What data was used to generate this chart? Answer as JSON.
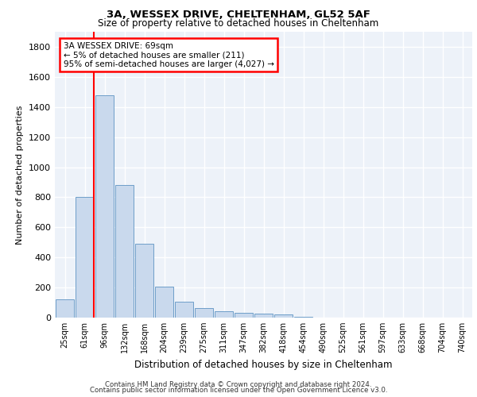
{
  "title_line1": "3A, WESSEX DRIVE, CHELTENHAM, GL52 5AF",
  "title_line2": "Size of property relative to detached houses in Cheltenham",
  "xlabel": "Distribution of detached houses by size in Cheltenham",
  "ylabel": "Number of detached properties",
  "categories": [
    "25sqm",
    "61sqm",
    "96sqm",
    "132sqm",
    "168sqm",
    "204sqm",
    "239sqm",
    "275sqm",
    "311sqm",
    "347sqm",
    "382sqm",
    "418sqm",
    "454sqm",
    "490sqm",
    "525sqm",
    "561sqm",
    "597sqm",
    "633sqm",
    "668sqm",
    "704sqm",
    "740sqm"
  ],
  "values": [
    120,
    800,
    1480,
    880,
    490,
    205,
    105,
    65,
    40,
    33,
    28,
    20,
    5,
    0,
    0,
    0,
    0,
    0,
    0,
    0,
    0
  ],
  "bar_color": "#c9d9ed",
  "bar_edge_color": "#6e9ec9",
  "vline_x_index": 1,
  "annotation_box_text": "3A WESSEX DRIVE: 69sqm\n← 5% of detached houses are smaller (211)\n95% of semi-detached houses are larger (4,027) →",
  "ylim": [
    0,
    1900
  ],
  "yticks": [
    0,
    200,
    400,
    600,
    800,
    1000,
    1200,
    1400,
    1600,
    1800
  ],
  "background_color": "#edf2f9",
  "grid_color": "#ffffff",
  "footer_line1": "Contains HM Land Registry data © Crown copyright and database right 2024.",
  "footer_line2": "Contains public sector information licensed under the Open Government Licence v3.0."
}
